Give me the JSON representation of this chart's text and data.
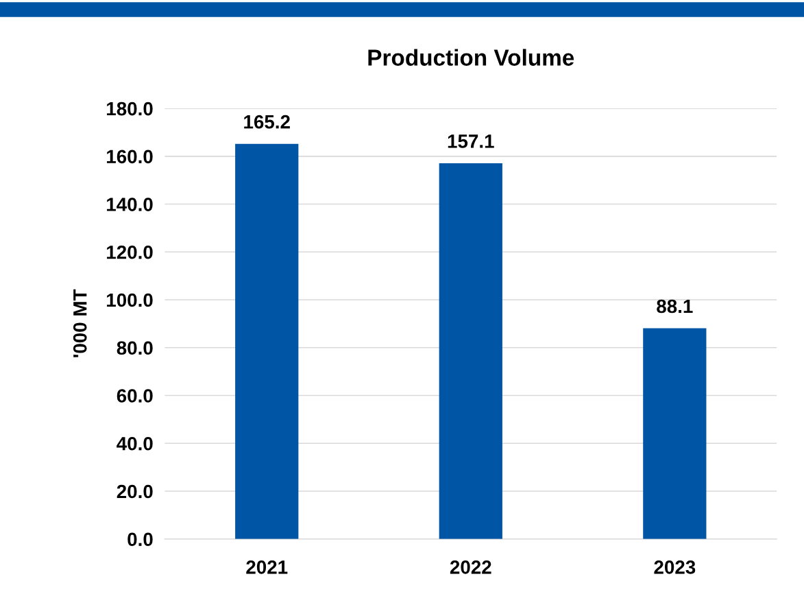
{
  "chart_data": {
    "type": "bar",
    "title": "Production Volume",
    "ylabel": "'000 MT",
    "categories": [
      "2021",
      "2022",
      "2023"
    ],
    "values": [
      165.2,
      157.1,
      88.1
    ],
    "color": "#0055a5",
    "ylim": [
      0,
      180
    ],
    "yticks": [
      {
        "value": 0,
        "label": "0.0"
      },
      {
        "value": 20,
        "label": "20.0"
      },
      {
        "value": 40,
        "label": "40.0"
      },
      {
        "value": 60,
        "label": "60.0"
      },
      {
        "value": 80,
        "label": "80.0"
      },
      {
        "value": 100,
        "label": "100.0"
      },
      {
        "value": 120,
        "label": "120.0"
      },
      {
        "value": 140,
        "label": "140.0"
      },
      {
        "value": 160,
        "label": "160.0"
      },
      {
        "value": 180,
        "label": "180.0"
      }
    ],
    "grid": "y",
    "data_labels": true,
    "legend": false
  }
}
